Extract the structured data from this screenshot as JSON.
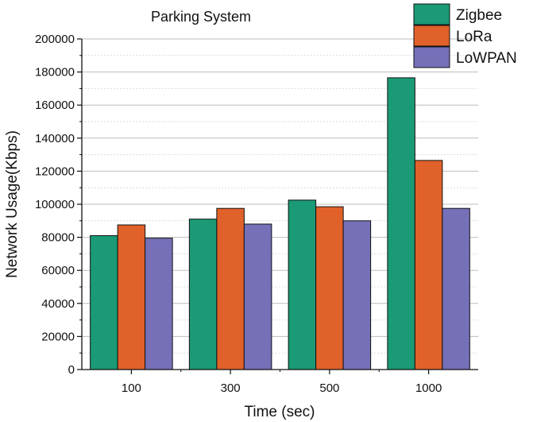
{
  "chart_data": {
    "type": "bar",
    "title": "Parking System",
    "xlabel": "Time (sec)",
    "ylabel": "Network Usage(Kbps)",
    "categories": [
      "100",
      "300",
      "500",
      "1000"
    ],
    "series": [
      {
        "name": "Zigbee",
        "color": "#1a9a76",
        "values": [
          81000,
          91000,
          102500,
          176500
        ]
      },
      {
        "name": "LoRa",
        "color": "#e0612a",
        "values": [
          87500,
          97500,
          98500,
          126500
        ]
      },
      {
        "name": "LoWPAN",
        "color": "#7570b8",
        "values": [
          79500,
          88000,
          90000,
          97500
        ]
      }
    ],
    "ylim": [
      0,
      200000
    ],
    "yticks": [
      "0",
      "20000",
      "40000",
      "60000",
      "80000",
      "100000",
      "120000",
      "140000",
      "160000",
      "180000",
      "200000"
    ],
    "grid": true,
    "legend_position": "top-right"
  }
}
